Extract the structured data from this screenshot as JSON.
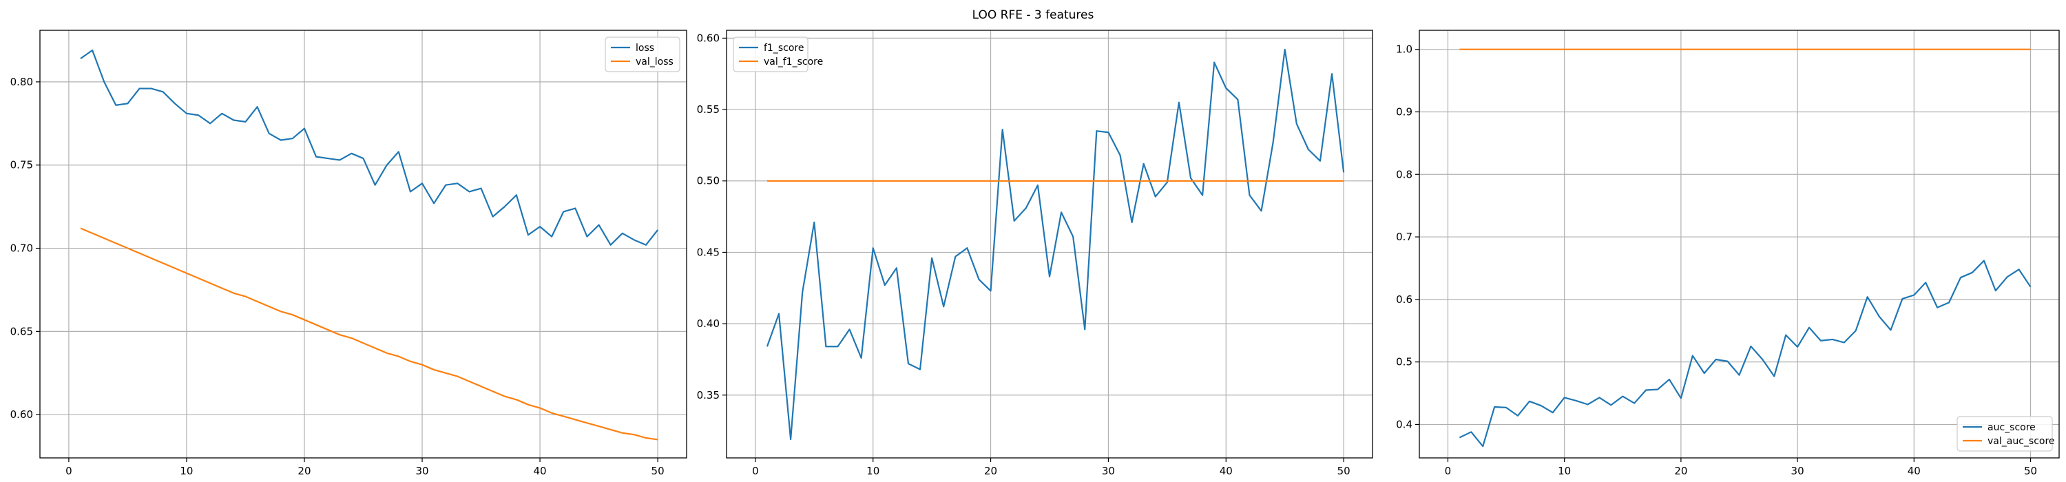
{
  "figure": {
    "suptitle": "LOO RFE - 3 features"
  },
  "chart_data": [
    {
      "type": "line",
      "title": "",
      "xlabel": "",
      "ylabel": "",
      "xlim": [
        -2.45,
        52.45
      ],
      "ylim": [
        0.574,
        0.831
      ],
      "xticks": [
        0,
        10,
        20,
        30,
        40,
        50
      ],
      "xtick_labels": [
        "0",
        "10",
        "20",
        "30",
        "40",
        "50"
      ],
      "yticks": [
        0.6,
        0.65,
        0.7,
        0.75,
        0.8
      ],
      "ytick_labels": [
        "0.60",
        "0.65",
        "0.70",
        "0.75",
        "0.80"
      ],
      "grid": true,
      "legend": "upper right",
      "colors": [
        "#1f77b4",
        "#ff7f0e"
      ],
      "x": [
        1,
        2,
        3,
        4,
        5,
        6,
        7,
        8,
        9,
        10,
        11,
        12,
        13,
        14,
        15,
        16,
        17,
        18,
        19,
        20,
        21,
        22,
        23,
        24,
        25,
        26,
        27,
        28,
        29,
        30,
        31,
        32,
        33,
        34,
        35,
        36,
        37,
        38,
        39,
        40,
        41,
        42,
        43,
        44,
        45,
        46,
        47,
        48,
        49,
        50
      ],
      "series": [
        {
          "name": "loss",
          "values": [
            0.814,
            0.819,
            0.8,
            0.786,
            0.787,
            0.796,
            0.796,
            0.794,
            0.787,
            0.781,
            0.78,
            0.775,
            0.781,
            0.777,
            0.776,
            0.785,
            0.769,
            0.765,
            0.766,
            0.772,
            0.755,
            0.754,
            0.753,
            0.757,
            0.754,
            0.738,
            0.75,
            0.758,
            0.734,
            0.739,
            0.727,
            0.738,
            0.739,
            0.734,
            0.736,
            0.719,
            0.725,
            0.732,
            0.708,
            0.713,
            0.707,
            0.722,
            0.724,
            0.707,
            0.714,
            0.702,
            0.709,
            0.705,
            0.702,
            0.711
          ]
        },
        {
          "name": "val_loss",
          "values": [
            0.712,
            0.709,
            0.706,
            0.703,
            0.7,
            0.697,
            0.694,
            0.691,
            0.688,
            0.685,
            0.682,
            0.679,
            0.676,
            0.673,
            0.671,
            0.668,
            0.665,
            0.662,
            0.66,
            0.657,
            0.654,
            0.651,
            0.648,
            0.646,
            0.643,
            0.64,
            0.637,
            0.635,
            0.632,
            0.63,
            0.627,
            0.625,
            0.623,
            0.62,
            0.617,
            0.614,
            0.611,
            0.609,
            0.606,
            0.604,
            0.601,
            0.599,
            0.597,
            0.595,
            0.593,
            0.591,
            0.589,
            0.588,
            0.586,
            0.585
          ]
        }
      ]
    },
    {
      "type": "line",
      "title": "",
      "xlabel": "",
      "ylabel": "",
      "xlim": [
        -2.45,
        52.45
      ],
      "ylim": [
        0.306,
        0.6055
      ],
      "xticks": [
        0,
        10,
        20,
        30,
        40,
        50
      ],
      "xtick_labels": [
        "0",
        "10",
        "20",
        "30",
        "40",
        "50"
      ],
      "yticks": [
        0.35,
        0.4,
        0.45,
        0.5,
        0.55,
        0.6
      ],
      "ytick_labels": [
        "0.35",
        "0.40",
        "0.45",
        "0.50",
        "0.55",
        "0.60"
      ],
      "grid": true,
      "legend": "upper left",
      "colors": [
        "#1f77b4",
        "#ff7f0e"
      ],
      "x": [
        1,
        2,
        3,
        4,
        5,
        6,
        7,
        8,
        9,
        10,
        11,
        12,
        13,
        14,
        15,
        16,
        17,
        18,
        19,
        20,
        21,
        22,
        23,
        24,
        25,
        26,
        27,
        28,
        29,
        30,
        31,
        32,
        33,
        34,
        35,
        36,
        37,
        38,
        39,
        40,
        41,
        42,
        43,
        44,
        45,
        46,
        47,
        48,
        49,
        50
      ],
      "series": [
        {
          "name": "f1_score",
          "values": [
            0.384,
            0.407,
            0.319,
            0.422,
            0.471,
            0.384,
            0.384,
            0.396,
            0.376,
            0.453,
            0.427,
            0.439,
            0.372,
            0.368,
            0.446,
            0.412,
            0.447,
            0.453,
            0.431,
            0.423,
            0.536,
            0.472,
            0.481,
            0.497,
            0.433,
            0.478,
            0.461,
            0.396,
            0.535,
            0.534,
            0.518,
            0.471,
            0.512,
            0.489,
            0.499,
            0.555,
            0.502,
            0.49,
            0.583,
            0.565,
            0.557,
            0.49,
            0.479,
            0.527,
            0.592,
            0.54,
            0.522,
            0.514,
            0.575,
            0.506
          ]
        },
        {
          "name": "val_f1_score",
          "values": [
            0.5,
            0.5,
            0.5,
            0.5,
            0.5,
            0.5,
            0.5,
            0.5,
            0.5,
            0.5,
            0.5,
            0.5,
            0.5,
            0.5,
            0.5,
            0.5,
            0.5,
            0.5,
            0.5,
            0.5,
            0.5,
            0.5,
            0.5,
            0.5,
            0.5,
            0.5,
            0.5,
            0.5,
            0.5,
            0.5,
            0.5,
            0.5,
            0.5,
            0.5,
            0.5,
            0.5,
            0.5,
            0.5,
            0.5,
            0.5,
            0.5,
            0.5,
            0.5,
            0.5,
            0.5,
            0.5,
            0.5,
            0.5,
            0.5,
            0.5
          ]
        }
      ]
    },
    {
      "type": "line",
      "title": "",
      "xlabel": "",
      "ylabel": "",
      "xlim": [
        -2.45,
        52.45
      ],
      "ylim": [
        0.3465,
        1.0305
      ],
      "xticks": [
        0,
        10,
        20,
        30,
        40,
        50
      ],
      "xtick_labels": [
        "0",
        "10",
        "20",
        "30",
        "40",
        "50"
      ],
      "yticks": [
        0.4,
        0.5,
        0.6,
        0.7,
        0.8,
        0.9,
        1.0
      ],
      "ytick_labels": [
        "0.4",
        "0.5",
        "0.6",
        "0.7",
        "0.8",
        "0.9",
        "1.0"
      ],
      "grid": true,
      "legend": "lower right",
      "colors": [
        "#1f77b4",
        "#ff7f0e"
      ],
      "x": [
        1,
        2,
        3,
        4,
        5,
        6,
        7,
        8,
        9,
        10,
        11,
        12,
        13,
        14,
        15,
        16,
        17,
        18,
        19,
        20,
        21,
        22,
        23,
        24,
        25,
        26,
        27,
        28,
        29,
        30,
        31,
        32,
        33,
        34,
        35,
        36,
        37,
        38,
        39,
        40,
        41,
        42,
        43,
        44,
        45,
        46,
        47,
        48,
        49,
        50
      ],
      "series": [
        {
          "name": "auc_score",
          "values": [
            0.379,
            0.388,
            0.365,
            0.428,
            0.427,
            0.414,
            0.437,
            0.43,
            0.419,
            0.443,
            0.438,
            0.432,
            0.443,
            0.431,
            0.445,
            0.434,
            0.455,
            0.456,
            0.472,
            0.442,
            0.51,
            0.482,
            0.504,
            0.501,
            0.479,
            0.525,
            0.504,
            0.477,
            0.543,
            0.524,
            0.555,
            0.534,
            0.536,
            0.531,
            0.55,
            0.604,
            0.573,
            0.551,
            0.601,
            0.607,
            0.627,
            0.587,
            0.595,
            0.635,
            0.643,
            0.662,
            0.614,
            0.636,
            0.648,
            0.62
          ]
        },
        {
          "name": "val_auc_score",
          "values": [
            1.0,
            1.0,
            1.0,
            1.0,
            1.0,
            1.0,
            1.0,
            1.0,
            1.0,
            1.0,
            1.0,
            1.0,
            1.0,
            1.0,
            1.0,
            1.0,
            1.0,
            1.0,
            1.0,
            1.0,
            1.0,
            1.0,
            1.0,
            1.0,
            1.0,
            1.0,
            1.0,
            1.0,
            1.0,
            1.0,
            1.0,
            1.0,
            1.0,
            1.0,
            1.0,
            1.0,
            1.0,
            1.0,
            1.0,
            1.0,
            1.0,
            1.0,
            1.0,
            1.0,
            1.0,
            1.0,
            1.0,
            1.0,
            1.0,
            1.0
          ]
        }
      ]
    }
  ]
}
